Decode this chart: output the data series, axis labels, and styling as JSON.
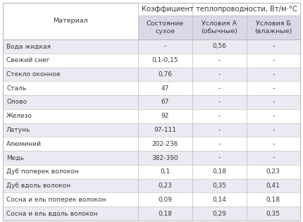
{
  "title": "Коэффициент теплопроводности, Вт/м·°С",
  "col_headers": [
    "Материал",
    "Состояние\nсухое",
    "Условия А\n(обычные)",
    "Условия Б\n(влажные)"
  ],
  "rows": [
    [
      "Вода жидкая",
      "-",
      "0,56",
      "-"
    ],
    [
      "Свежий снег",
      "0,1-0,15",
      "-",
      "-"
    ],
    [
      "Стекло оконное",
      "0,76",
      "-",
      "-"
    ],
    [
      "Сталь",
      "47",
      "-",
      "-"
    ],
    [
      "Олово",
      "67",
      "-",
      "-"
    ],
    [
      "Железо",
      "92",
      "-",
      "-"
    ],
    [
      "Латунь",
      "97-111",
      "-",
      "-"
    ],
    [
      "Алюминий",
      "202-236",
      "-",
      "-"
    ],
    [
      "Медь",
      "382-390",
      "-",
      "-"
    ],
    [
      "Дуб поперек волокон",
      "0,1",
      "0,18",
      "0,23"
    ],
    [
      "Дуб вдоль волокон",
      "0,23",
      "0,35",
      "0,41"
    ],
    [
      "Сосна и ель поперек волокон",
      "0,09",
      "0,14",
      "0,18"
    ],
    [
      "Сосна и ель вдоль волокон",
      "0,18",
      "0,29",
      "0,35"
    ]
  ],
  "header_bg": "#d8d8e8",
  "row_bg_even": "#ffffff",
  "row_bg_odd": "#eaeaf2",
  "text_color": "#3a3a3a",
  "border_color": "#bbbbbb",
  "font_size": 6.5,
  "header_font_size": 6.8,
  "title_font_size": 7.2,
  "fig_width": 4.3,
  "fig_height": 3.15,
  "dpi": 100
}
